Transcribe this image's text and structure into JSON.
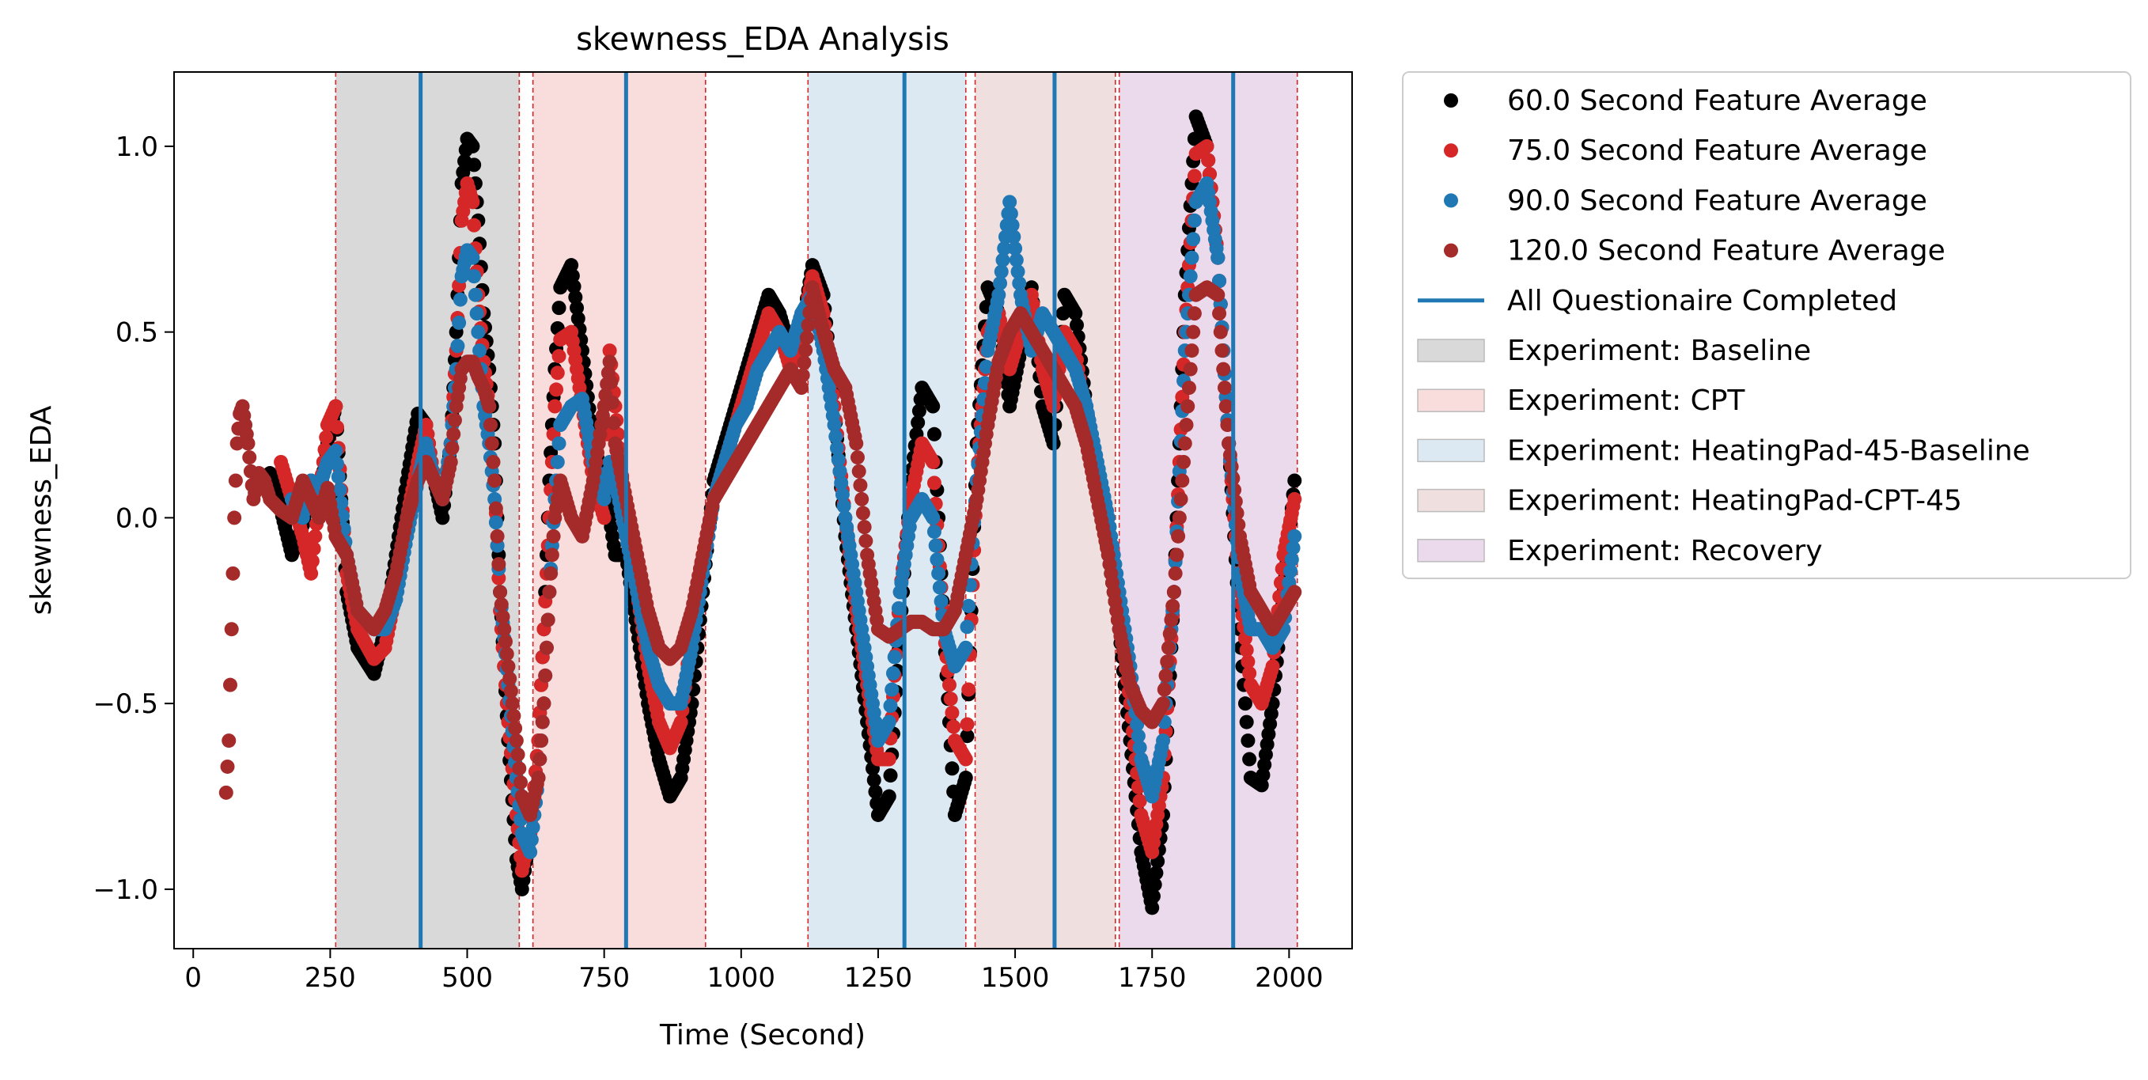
{
  "chart_data": {
    "type": "scatter",
    "title": "skewness_EDA Analysis",
    "xlabel": "Time (Second)",
    "ylabel": "skewness_EDA",
    "xlim": [
      -35,
      2115
    ],
    "ylim": [
      -1.16,
      1.2
    ],
    "xticks": [
      0,
      250,
      500,
      750,
      1000,
      1250,
      1500,
      1750,
      2000
    ],
    "xtick_labels": [
      "0",
      "250",
      "500",
      "750",
      "1000",
      "1250",
      "1500",
      "1750",
      "2000"
    ],
    "yticks": [
      -1.0,
      -0.5,
      0.0,
      0.5,
      1.0
    ],
    "ytick_labels": [
      "−1.0",
      "−0.5",
      "0.0",
      "0.5",
      "1.0"
    ],
    "grid": false,
    "legend_placement": "outside-upper-right",
    "regions": [
      {
        "name": "Experiment: Baseline",
        "start": 260,
        "end": 595,
        "color": "#d9d9d9"
      },
      {
        "name": "Experiment: CPT",
        "start": 620,
        "end": 935,
        "color": "#f9dcdc"
      },
      {
        "name": "Experiment: HeatingPad-45-Baseline",
        "start": 1122,
        "end": 1410,
        "color": "#dce9f3"
      },
      {
        "name": "Experiment: HeatingPad-CPT-45",
        "start": 1427,
        "end": 1683,
        "color": "#f0dfdf"
      },
      {
        "name": "Experiment: Recovery",
        "start": 1690,
        "end": 2015,
        "color": "#ebd9ec"
      }
    ],
    "boundary_lines": [
      260,
      595,
      620,
      935,
      1122,
      1410,
      1427,
      1683,
      1690,
      2015
    ],
    "questionnaire_lines": [
      415,
      790,
      1298,
      1572,
      1898
    ],
    "questionnaire_label": "All Questionaire Completed",
    "questionnaire_color": "#1f77b4",
    "series": [
      {
        "name": "60.0 Second Feature Average",
        "color": "#000000",
        "x": [
          140,
          160,
          180,
          200,
          215,
          230,
          245,
          260,
          280,
          300,
          330,
          350,
          370,
          390,
          410,
          425,
          440,
          455,
          470,
          480,
          490,
          500,
          510,
          520,
          530,
          540,
          550,
          560,
          575,
          590,
          600,
          615,
          630,
          640,
          650,
          660,
          670,
          690,
          710,
          730,
          750,
          760,
          770,
          790,
          810,
          830,
          850,
          870,
          890,
          910,
          930,
          950,
          970,
          990,
          1010,
          1030,
          1050,
          1070,
          1090,
          1110,
          1130,
          1150,
          1170,
          1190,
          1210,
          1230,
          1250,
          1270,
          1290,
          1310,
          1330,
          1350,
          1370,
          1390,
          1410,
          1430,
          1450,
          1470,
          1490,
          1510,
          1530,
          1550,
          1570,
          1590,
          1610,
          1630,
          1650,
          1670,
          1690,
          1710,
          1730,
          1750,
          1770,
          1790,
          1810,
          1830,
          1850,
          1870,
          1890,
          1910,
          1930,
          1950,
          1970,
          1990,
          2010
        ],
        "y": [
          0.12,
          0.02,
          -0.1,
          -0.02,
          0.1,
          0.05,
          0.2,
          0.3,
          -0.2,
          -0.35,
          -0.42,
          -0.3,
          -0.1,
          0.1,
          0.28,
          0.25,
          0.1,
          0.0,
          0.2,
          0.5,
          0.9,
          1.02,
          1.0,
          0.8,
          0.55,
          0.4,
          0.2,
          -0.2,
          -0.6,
          -0.92,
          -1.0,
          -0.85,
          -0.6,
          -0.3,
          0.1,
          0.4,
          0.62,
          0.68,
          0.45,
          0.2,
          0.1,
          0.0,
          -0.1,
          -0.1,
          -0.3,
          -0.5,
          -0.65,
          -0.75,
          -0.7,
          -0.5,
          -0.2,
          0.1,
          0.2,
          0.3,
          0.4,
          0.5,
          0.6,
          0.55,
          0.45,
          0.5,
          0.68,
          0.6,
          0.3,
          -0.05,
          -0.3,
          -0.55,
          -0.8,
          -0.75,
          -0.3,
          0.1,
          0.35,
          0.3,
          -0.3,
          -0.8,
          -0.7,
          0.2,
          0.62,
          0.55,
          0.3,
          0.45,
          0.62,
          0.3,
          0.2,
          0.6,
          0.55,
          0.3,
          0.1,
          -0.1,
          -0.3,
          -0.6,
          -0.9,
          -1.05,
          -0.8,
          -0.2,
          0.6,
          1.08,
          1.0,
          0.7,
          0.2,
          -0.3,
          -0.7,
          -0.72,
          -0.5,
          -0.2,
          0.1
        ]
      },
      {
        "name": "75.0 Second Feature Average",
        "color": "#d62728",
        "x": [
          160,
          180,
          200,
          215,
          230,
          245,
          260,
          280,
          300,
          330,
          350,
          370,
          390,
          410,
          425,
          440,
          455,
          470,
          480,
          490,
          500,
          510,
          520,
          530,
          540,
          550,
          560,
          575,
          590,
          600,
          615,
          630,
          640,
          650,
          660,
          670,
          690,
          710,
          730,
          750,
          760,
          770,
          790,
          810,
          830,
          850,
          870,
          890,
          910,
          930,
          950,
          970,
          990,
          1010,
          1030,
          1050,
          1070,
          1090,
          1110,
          1130,
          1150,
          1170,
          1190,
          1210,
          1230,
          1250,
          1270,
          1290,
          1310,
          1330,
          1350,
          1370,
          1390,
          1410,
          1430,
          1450,
          1470,
          1490,
          1510,
          1530,
          1550,
          1570,
          1590,
          1610,
          1630,
          1650,
          1670,
          1690,
          1710,
          1730,
          1750,
          1770,
          1790,
          1810,
          1830,
          1850,
          1870,
          1890,
          1910,
          1930,
          1950,
          1970,
          1990,
          2010
        ],
        "y": [
          0.15,
          0.05,
          -0.05,
          -0.15,
          0.05,
          0.25,
          0.3,
          -0.15,
          -0.3,
          -0.38,
          -0.35,
          -0.2,
          0.0,
          0.15,
          0.25,
          0.1,
          0.05,
          0.2,
          0.45,
          0.8,
          0.9,
          0.85,
          0.6,
          0.42,
          0.3,
          0.1,
          -0.25,
          -0.55,
          -0.8,
          -0.95,
          -0.85,
          -0.6,
          -0.3,
          0.0,
          0.3,
          0.48,
          0.5,
          0.3,
          0.1,
          0.0,
          0.45,
          0.3,
          0.0,
          -0.2,
          -0.4,
          -0.55,
          -0.62,
          -0.55,
          -0.3,
          -0.1,
          0.05,
          0.15,
          0.25,
          0.35,
          0.45,
          0.55,
          0.5,
          0.4,
          0.5,
          0.65,
          0.55,
          0.3,
          0.0,
          -0.25,
          -0.45,
          -0.65,
          -0.65,
          -0.2,
          0.05,
          0.2,
          0.15,
          -0.3,
          -0.6,
          -0.65,
          0.1,
          0.5,
          0.55,
          0.4,
          0.5,
          0.6,
          0.4,
          0.3,
          0.5,
          0.45,
          0.25,
          0.1,
          -0.05,
          -0.25,
          -0.5,
          -0.8,
          -0.9,
          -0.7,
          -0.2,
          0.5,
          0.98,
          1.0,
          0.7,
          0.2,
          -0.2,
          -0.45,
          -0.5,
          -0.4,
          -0.1,
          0.05
        ]
      },
      {
        "name": "90.0 Second Feature Average",
        "color": "#1f77b4",
        "x": [
          180,
          200,
          215,
          230,
          245,
          260,
          280,
          300,
          330,
          350,
          370,
          390,
          410,
          425,
          440,
          455,
          470,
          480,
          490,
          500,
          510,
          520,
          530,
          540,
          550,
          560,
          575,
          590,
          600,
          615,
          630,
          640,
          650,
          660,
          670,
          690,
          710,
          730,
          750,
          760,
          770,
          790,
          810,
          830,
          850,
          870,
          890,
          910,
          930,
          950,
          970,
          990,
          1010,
          1030,
          1050,
          1070,
          1090,
          1110,
          1130,
          1150,
          1170,
          1190,
          1210,
          1230,
          1250,
          1270,
          1290,
          1310,
          1330,
          1350,
          1370,
          1390,
          1410,
          1430,
          1450,
          1470,
          1490,
          1510,
          1530,
          1550,
          1570,
          1590,
          1610,
          1630,
          1650,
          1670,
          1690,
          1710,
          1730,
          1750,
          1770,
          1790,
          1810,
          1830,
          1850,
          1870,
          1890,
          1910,
          1930,
          1950,
          1970,
          1990,
          2010
        ],
        "y": [
          0.05,
          0.0,
          0.1,
          0.08,
          0.15,
          0.18,
          -0.1,
          -0.25,
          -0.3,
          -0.3,
          -0.22,
          -0.05,
          0.1,
          0.2,
          0.1,
          0.05,
          0.2,
          0.4,
          0.65,
          0.72,
          0.7,
          0.5,
          0.3,
          0.2,
          0.05,
          -0.2,
          -0.45,
          -0.7,
          -0.85,
          -0.9,
          -0.7,
          -0.5,
          -0.2,
          0.05,
          0.25,
          0.3,
          0.32,
          0.15,
          0.05,
          0.15,
          0.1,
          -0.05,
          -0.2,
          -0.35,
          -0.45,
          -0.5,
          -0.5,
          -0.35,
          -0.15,
          0.05,
          0.15,
          0.25,
          0.3,
          0.4,
          0.45,
          0.5,
          0.45,
          0.55,
          0.6,
          0.45,
          0.25,
          0.0,
          -0.2,
          -0.4,
          -0.6,
          -0.55,
          -0.2,
          0.0,
          0.05,
          0.0,
          -0.3,
          -0.4,
          -0.35,
          0.1,
          0.45,
          0.6,
          0.85,
          0.6,
          0.45,
          0.55,
          0.5,
          0.45,
          0.4,
          0.3,
          0.15,
          0.0,
          -0.2,
          -0.4,
          -0.65,
          -0.75,
          -0.6,
          -0.2,
          0.45,
          0.85,
          0.9,
          0.7,
          0.2,
          -0.15,
          -0.3,
          -0.3,
          -0.35,
          -0.3,
          -0.05
        ]
      },
      {
        "name": "120.0 Second Feature Average",
        "color": "#a52a2a",
        "x": [
          60,
          65,
          70,
          75,
          80,
          85,
          90,
          95,
          100,
          110,
          120,
          130,
          140,
          160,
          180,
          200,
          215,
          230,
          245,
          260,
          280,
          300,
          330,
          350,
          370,
          390,
          410,
          425,
          440,
          455,
          470,
          480,
          490,
          500,
          510,
          520,
          530,
          540,
          550,
          560,
          575,
          590,
          600,
          615,
          630,
          640,
          650,
          660,
          670,
          690,
          710,
          730,
          750,
          760,
          770,
          790,
          810,
          830,
          850,
          870,
          890,
          910,
          930,
          950,
          970,
          990,
          1010,
          1030,
          1050,
          1070,
          1090,
          1110,
          1130,
          1150,
          1170,
          1190,
          1210,
          1230,
          1250,
          1270,
          1290,
          1310,
          1330,
          1350,
          1370,
          1390,
          1410,
          1430,
          1450,
          1470,
          1490,
          1510,
          1530,
          1550,
          1570,
          1590,
          1610,
          1630,
          1650,
          1670,
          1690,
          1710,
          1730,
          1750,
          1770,
          1790,
          1810,
          1830,
          1850,
          1870,
          1890,
          1910,
          1930,
          1950,
          1970,
          1990,
          2010
        ],
        "y": [
          -0.74,
          -0.6,
          -0.3,
          0.0,
          0.2,
          0.28,
          0.3,
          0.25,
          0.2,
          0.05,
          0.12,
          0.1,
          0.05,
          0.02,
          0.0,
          0.1,
          0.05,
          0.0,
          0.08,
          -0.05,
          -0.1,
          -0.25,
          -0.3,
          -0.25,
          -0.15,
          0.0,
          0.1,
          0.15,
          0.1,
          0.05,
          0.15,
          0.3,
          0.4,
          0.42,
          0.42,
          0.38,
          0.35,
          0.3,
          0.1,
          -0.2,
          -0.4,
          -0.6,
          -0.75,
          -0.8,
          -0.7,
          -0.5,
          -0.2,
          0.0,
          0.1,
          0.0,
          -0.05,
          0.1,
          0.3,
          0.42,
          0.2,
          0.05,
          -0.1,
          -0.25,
          -0.35,
          -0.38,
          -0.35,
          -0.25,
          -0.1,
          0.05,
          0.1,
          0.15,
          0.2,
          0.25,
          0.3,
          0.35,
          0.4,
          0.35,
          0.62,
          0.5,
          0.4,
          0.35,
          0.2,
          -0.1,
          -0.3,
          -0.32,
          -0.3,
          -0.28,
          -0.28,
          -0.3,
          -0.3,
          -0.25,
          -0.1,
          0.05,
          0.25,
          0.42,
          0.5,
          0.55,
          0.5,
          0.45,
          0.4,
          0.35,
          0.3,
          0.2,
          0.05,
          -0.1,
          -0.3,
          -0.45,
          -0.52,
          -0.55,
          -0.5,
          -0.2,
          0.2,
          0.6,
          0.62,
          0.6,
          0.2,
          -0.05,
          -0.2,
          -0.25,
          -0.3,
          -0.25,
          -0.2
        ]
      }
    ]
  }
}
